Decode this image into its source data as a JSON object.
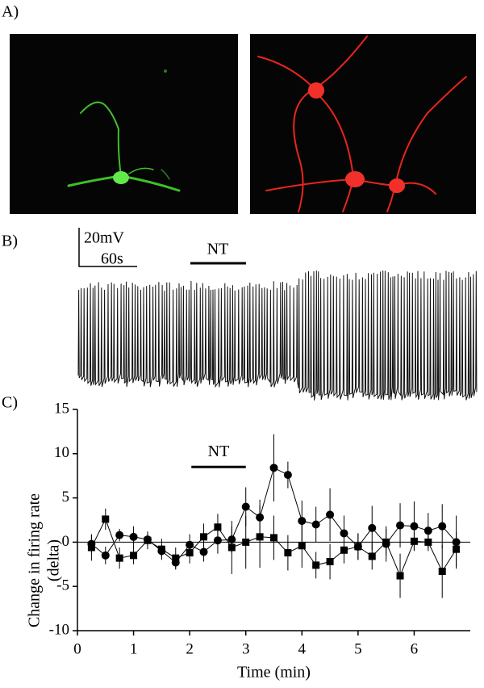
{
  "panels": {
    "a": "A)",
    "b": "B)",
    "c": "C)"
  },
  "trace": {
    "scale_v": "20mV",
    "scale_t": "60s",
    "drug": "NT"
  },
  "chart_data": {
    "type": "line",
    "annotation": {
      "text": "NT",
      "x": [
        2.03,
        3.0
      ],
      "y": 8.5
    },
    "x_label": "Time (min)",
    "y_label": "Change in firing rate",
    "y_label_unit": "(delta)",
    "xlim": [
      0,
      7
    ],
    "ylim": [
      -10,
      15
    ],
    "xticks": [
      0,
      1,
      2,
      3,
      4,
      5,
      6
    ],
    "yticks": [
      -10,
      -5,
      0,
      5,
      10,
      15
    ],
    "x": [
      0.25,
      0.5,
      0.75,
      1.0,
      1.25,
      1.5,
      1.75,
      2.0,
      2.25,
      2.5,
      2.75,
      3.0,
      3.25,
      3.5,
      3.75,
      4.0,
      4.25,
      4.5,
      4.75,
      5.0,
      5.25,
      5.5,
      5.75,
      6.0,
      6.25,
      6.5,
      6.75
    ],
    "series": [
      {
        "marker": "circle",
        "color": "#000000",
        "values": [
          -0.2,
          -1.5,
          0.8,
          0.6,
          0.3,
          -1.0,
          -2.3,
          -0.3,
          -1.1,
          0.2,
          0.3,
          4.0,
          2.8,
          8.4,
          7.6,
          2.4,
          2.0,
          3.1,
          1.0,
          -0.5,
          1.6,
          -0.2,
          1.9,
          1.8,
          1.3,
          1.8,
          0.0
        ],
        "errors": [
          1.0,
          1.0,
          0.7,
          1.2,
          0.7,
          0.7,
          0.8,
          1.2,
          1.1,
          1.5,
          1.5,
          2.2,
          2.0,
          3.8,
          1.5,
          2.3,
          2.0,
          3.0,
          2.0,
          1.5,
          2.5,
          2.0,
          2.5,
          2.8,
          2.0,
          2.5,
          3.0
        ]
      },
      {
        "marker": "square",
        "color": "#000000",
        "values": [
          -0.6,
          2.6,
          -1.8,
          -1.5,
          0.2,
          -0.8,
          -1.8,
          -1.2,
          0.6,
          1.7,
          -0.6,
          0.0,
          0.6,
          0.5,
          -1.2,
          -0.4,
          -2.6,
          -2.2,
          -0.9,
          -0.5,
          -1.6,
          0.0,
          -3.8,
          0.1,
          0.0,
          -3.3,
          -0.8
        ],
        "errors": [
          1.5,
          1.2,
          1.2,
          1.0,
          1.0,
          1.2,
          1.2,
          1.2,
          1.5,
          1.5,
          3.0,
          3.0,
          3.5,
          2.5,
          2.0,
          2.5,
          1.5,
          2.0,
          1.5,
          1.5,
          1.5,
          1.5,
          2.5,
          1.0,
          1.0,
          3.0,
          2.0
        ]
      }
    ]
  }
}
